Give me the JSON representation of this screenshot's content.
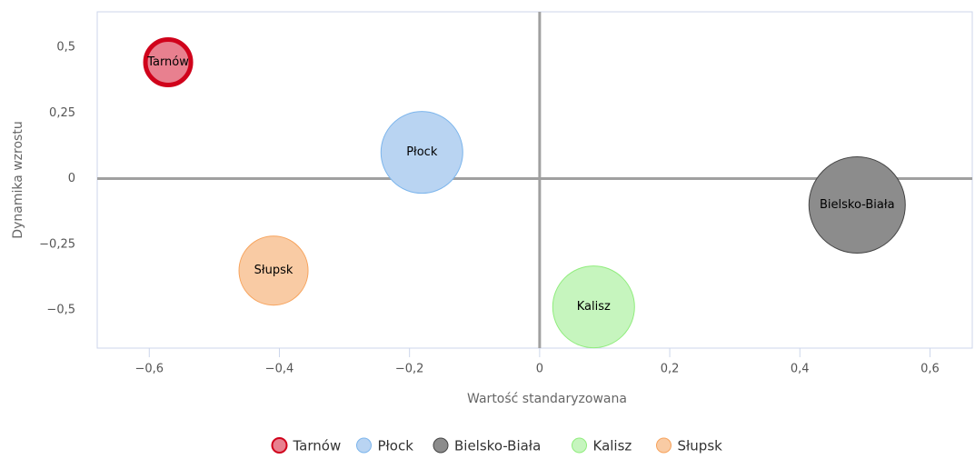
{
  "chart_data": {
    "type": "bubble",
    "x_label": "Wartość standaryzowana",
    "y_label": "Dynamika wzrostu",
    "xlim": [
      -0.68,
      0.665
    ],
    "ylim": [
      -0.645,
      0.635
    ],
    "xticks": [
      {
        "value": -0.6,
        "label": "−0,6"
      },
      {
        "value": -0.4,
        "label": "−0,4"
      },
      {
        "value": -0.2,
        "label": "−0,2"
      },
      0,
      {
        "value": 0.2,
        "label": "0,2"
      },
      {
        "value": 0.4,
        "label": "0,4"
      },
      {
        "value": 0.6,
        "label": "0,6"
      }
    ],
    "yticks": [
      {
        "value": 0.5,
        "label": "0,5"
      },
      {
        "value": 0.25,
        "label": "0,25"
      },
      0,
      {
        "value": -0.25,
        "label": "−0,25"
      },
      {
        "value": -0.5,
        "label": "−0,5"
      }
    ],
    "legend": "bottom",
    "series": [
      {
        "name": "Tarnów",
        "color": "#e8808f",
        "stroke": "#d0021b",
        "x": [
          -0.571
        ],
        "values": [
          0.443
        ],
        "size": [
          25
        ]
      },
      {
        "name": "Płock",
        "color": "#b9d4f2",
        "stroke": "#7cb5ec",
        "x": [
          -0.181
        ],
        "values": [
          0.1
        ],
        "size": [
          45
        ]
      },
      {
        "name": "Bielsko-Biała",
        "color": "#8c8c8c",
        "stroke": "#444444",
        "x": [
          0.488
        ],
        "values": [
          -0.1
        ],
        "size": [
          53
        ]
      },
      {
        "name": "Kalisz",
        "color": "#c6f5be",
        "stroke": "#90ed7d",
        "x": [
          0.083
        ],
        "values": [
          -0.488
        ],
        "size": [
          45
        ]
      },
      {
        "name": "Słupsk",
        "color": "#f9cba4",
        "stroke": "#f7a35c",
        "x": [
          -0.409
        ],
        "values": [
          -0.35
        ],
        "size": [
          38
        ]
      }
    ]
  }
}
